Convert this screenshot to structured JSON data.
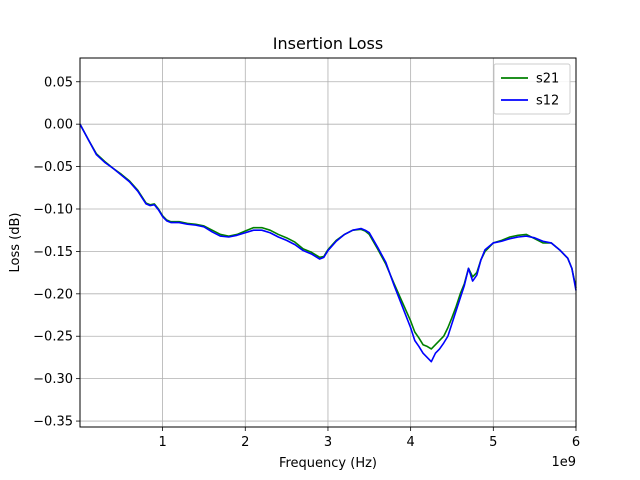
{
  "chart_data": {
    "type": "line",
    "title": "Insertion Loss",
    "xlabel": "Frequency (Hz)",
    "ylabel": "Loss (dB)",
    "ylabel_color": "#008000",
    "x_offset_label": "1e9",
    "xlim": [
      1000000,
      6000000000
    ],
    "ylim": [
      -0.357,
      0.078
    ],
    "xticks": [
      {
        "value": 1000000000,
        "label": "1"
      },
      {
        "value": 2000000000,
        "label": "2"
      },
      {
        "value": 3000000000,
        "label": "3"
      },
      {
        "value": 4000000000,
        "label": "4"
      },
      {
        "value": 5000000000,
        "label": "5"
      },
      {
        "value": 6000000000,
        "label": "6"
      }
    ],
    "yticks": [
      {
        "value": 0.05,
        "label": "0.05"
      },
      {
        "value": 0.0,
        "label": "0.00"
      },
      {
        "value": -0.05,
        "label": "−0.05"
      },
      {
        "value": -0.1,
        "label": "−0.10"
      },
      {
        "value": -0.15,
        "label": "−0.15"
      },
      {
        "value": -0.2,
        "label": "−0.20"
      },
      {
        "value": -0.25,
        "label": "−0.25"
      },
      {
        "value": -0.3,
        "label": "−0.30"
      },
      {
        "value": -0.35,
        "label": "−0.35"
      }
    ],
    "grid": true,
    "legend_position": "top-right",
    "series": [
      {
        "name": "s21",
        "color": "#008000",
        "x": [
          1000000,
          100000000,
          200000000,
          300000000,
          400000000,
          500000000,
          600000000,
          700000000,
          800000000,
          850000000,
          900000000,
          950000000,
          1000000000,
          1050000000,
          1100000000,
          1200000000,
          1300000000,
          1400000000,
          1500000000,
          1600000000,
          1700000000,
          1800000000,
          1900000000,
          2000000000,
          2100000000,
          2200000000,
          2300000000,
          2400000000,
          2500000000,
          2600000000,
          2700000000,
          2800000000,
          2900000000,
          2950000000,
          3000000000,
          3100000000,
          3200000000,
          3300000000,
          3400000000,
          3450000000,
          3500000000,
          3600000000,
          3700000000,
          3800000000,
          3900000000,
          4000000000,
          4050000000,
          4100000000,
          4150000000,
          4200000000,
          4250000000,
          4300000000,
          4350000000,
          4400000000,
          4450000000,
          4500000000,
          4550000000,
          4600000000,
          4650000000,
          4700000000,
          4750000000,
          4800000000,
          4850000000,
          4900000000,
          5000000000,
          5100000000,
          5200000000,
          5300000000,
          5400000000,
          5500000000,
          5600000000,
          5700000000,
          5800000000,
          5900000000,
          5950000000,
          6000000000
        ],
        "y": [
          0.0,
          -0.018,
          -0.035,
          -0.044,
          -0.052,
          -0.059,
          -0.067,
          -0.078,
          -0.093,
          -0.095,
          -0.094,
          -0.1,
          -0.108,
          -0.113,
          -0.115,
          -0.115,
          -0.117,
          -0.118,
          -0.12,
          -0.125,
          -0.13,
          -0.132,
          -0.13,
          -0.126,
          -0.122,
          -0.122,
          -0.125,
          -0.13,
          -0.134,
          -0.139,
          -0.147,
          -0.151,
          -0.157,
          -0.156,
          -0.148,
          -0.137,
          -0.13,
          -0.125,
          -0.124,
          -0.126,
          -0.13,
          -0.147,
          -0.165,
          -0.188,
          -0.21,
          -0.232,
          -0.245,
          -0.252,
          -0.26,
          -0.262,
          -0.265,
          -0.26,
          -0.255,
          -0.25,
          -0.24,
          -0.228,
          -0.215,
          -0.2,
          -0.188,
          -0.17,
          -0.18,
          -0.175,
          -0.16,
          -0.15,
          -0.14,
          -0.137,
          -0.133,
          -0.131,
          -0.13,
          -0.135,
          -0.14,
          -0.14,
          -0.148,
          -0.158,
          -0.17,
          -0.193
        ]
      },
      {
        "name": "s12",
        "color": "#0000ff",
        "x": [
          1000000,
          100000000,
          200000000,
          300000000,
          400000000,
          500000000,
          600000000,
          700000000,
          800000000,
          850000000,
          900000000,
          950000000,
          1000000000,
          1050000000,
          1100000000,
          1200000000,
          1300000000,
          1400000000,
          1500000000,
          1600000000,
          1700000000,
          1800000000,
          1900000000,
          2000000000,
          2100000000,
          2200000000,
          2300000000,
          2400000000,
          2500000000,
          2600000000,
          2700000000,
          2800000000,
          2900000000,
          2950000000,
          3000000000,
          3100000000,
          3200000000,
          3300000000,
          3400000000,
          3450000000,
          3500000000,
          3600000000,
          3700000000,
          3800000000,
          3900000000,
          4000000000,
          4050000000,
          4100000000,
          4150000000,
          4200000000,
          4250000000,
          4300000000,
          4350000000,
          4400000000,
          4450000000,
          4500000000,
          4550000000,
          4600000000,
          4650000000,
          4700000000,
          4750000000,
          4800000000,
          4850000000,
          4900000000,
          5000000000,
          5100000000,
          5200000000,
          5300000000,
          5400000000,
          5500000000,
          5600000000,
          5700000000,
          5800000000,
          5900000000,
          5950000000,
          6000000000
        ],
        "y": [
          0.0,
          -0.018,
          -0.036,
          -0.045,
          -0.052,
          -0.06,
          -0.068,
          -0.079,
          -0.094,
          -0.096,
          -0.095,
          -0.101,
          -0.109,
          -0.114,
          -0.116,
          -0.116,
          -0.118,
          -0.119,
          -0.121,
          -0.127,
          -0.132,
          -0.133,
          -0.131,
          -0.128,
          -0.125,
          -0.125,
          -0.128,
          -0.133,
          -0.137,
          -0.142,
          -0.149,
          -0.153,
          -0.159,
          -0.157,
          -0.149,
          -0.138,
          -0.13,
          -0.125,
          -0.123,
          -0.125,
          -0.128,
          -0.145,
          -0.163,
          -0.19,
          -0.215,
          -0.24,
          -0.255,
          -0.262,
          -0.27,
          -0.275,
          -0.28,
          -0.27,
          -0.265,
          -0.258,
          -0.25,
          -0.235,
          -0.22,
          -0.205,
          -0.19,
          -0.17,
          -0.185,
          -0.178,
          -0.16,
          -0.148,
          -0.14,
          -0.138,
          -0.135,
          -0.133,
          -0.132,
          -0.134,
          -0.138,
          -0.14,
          -0.148,
          -0.158,
          -0.17,
          -0.196
        ]
      }
    ]
  }
}
